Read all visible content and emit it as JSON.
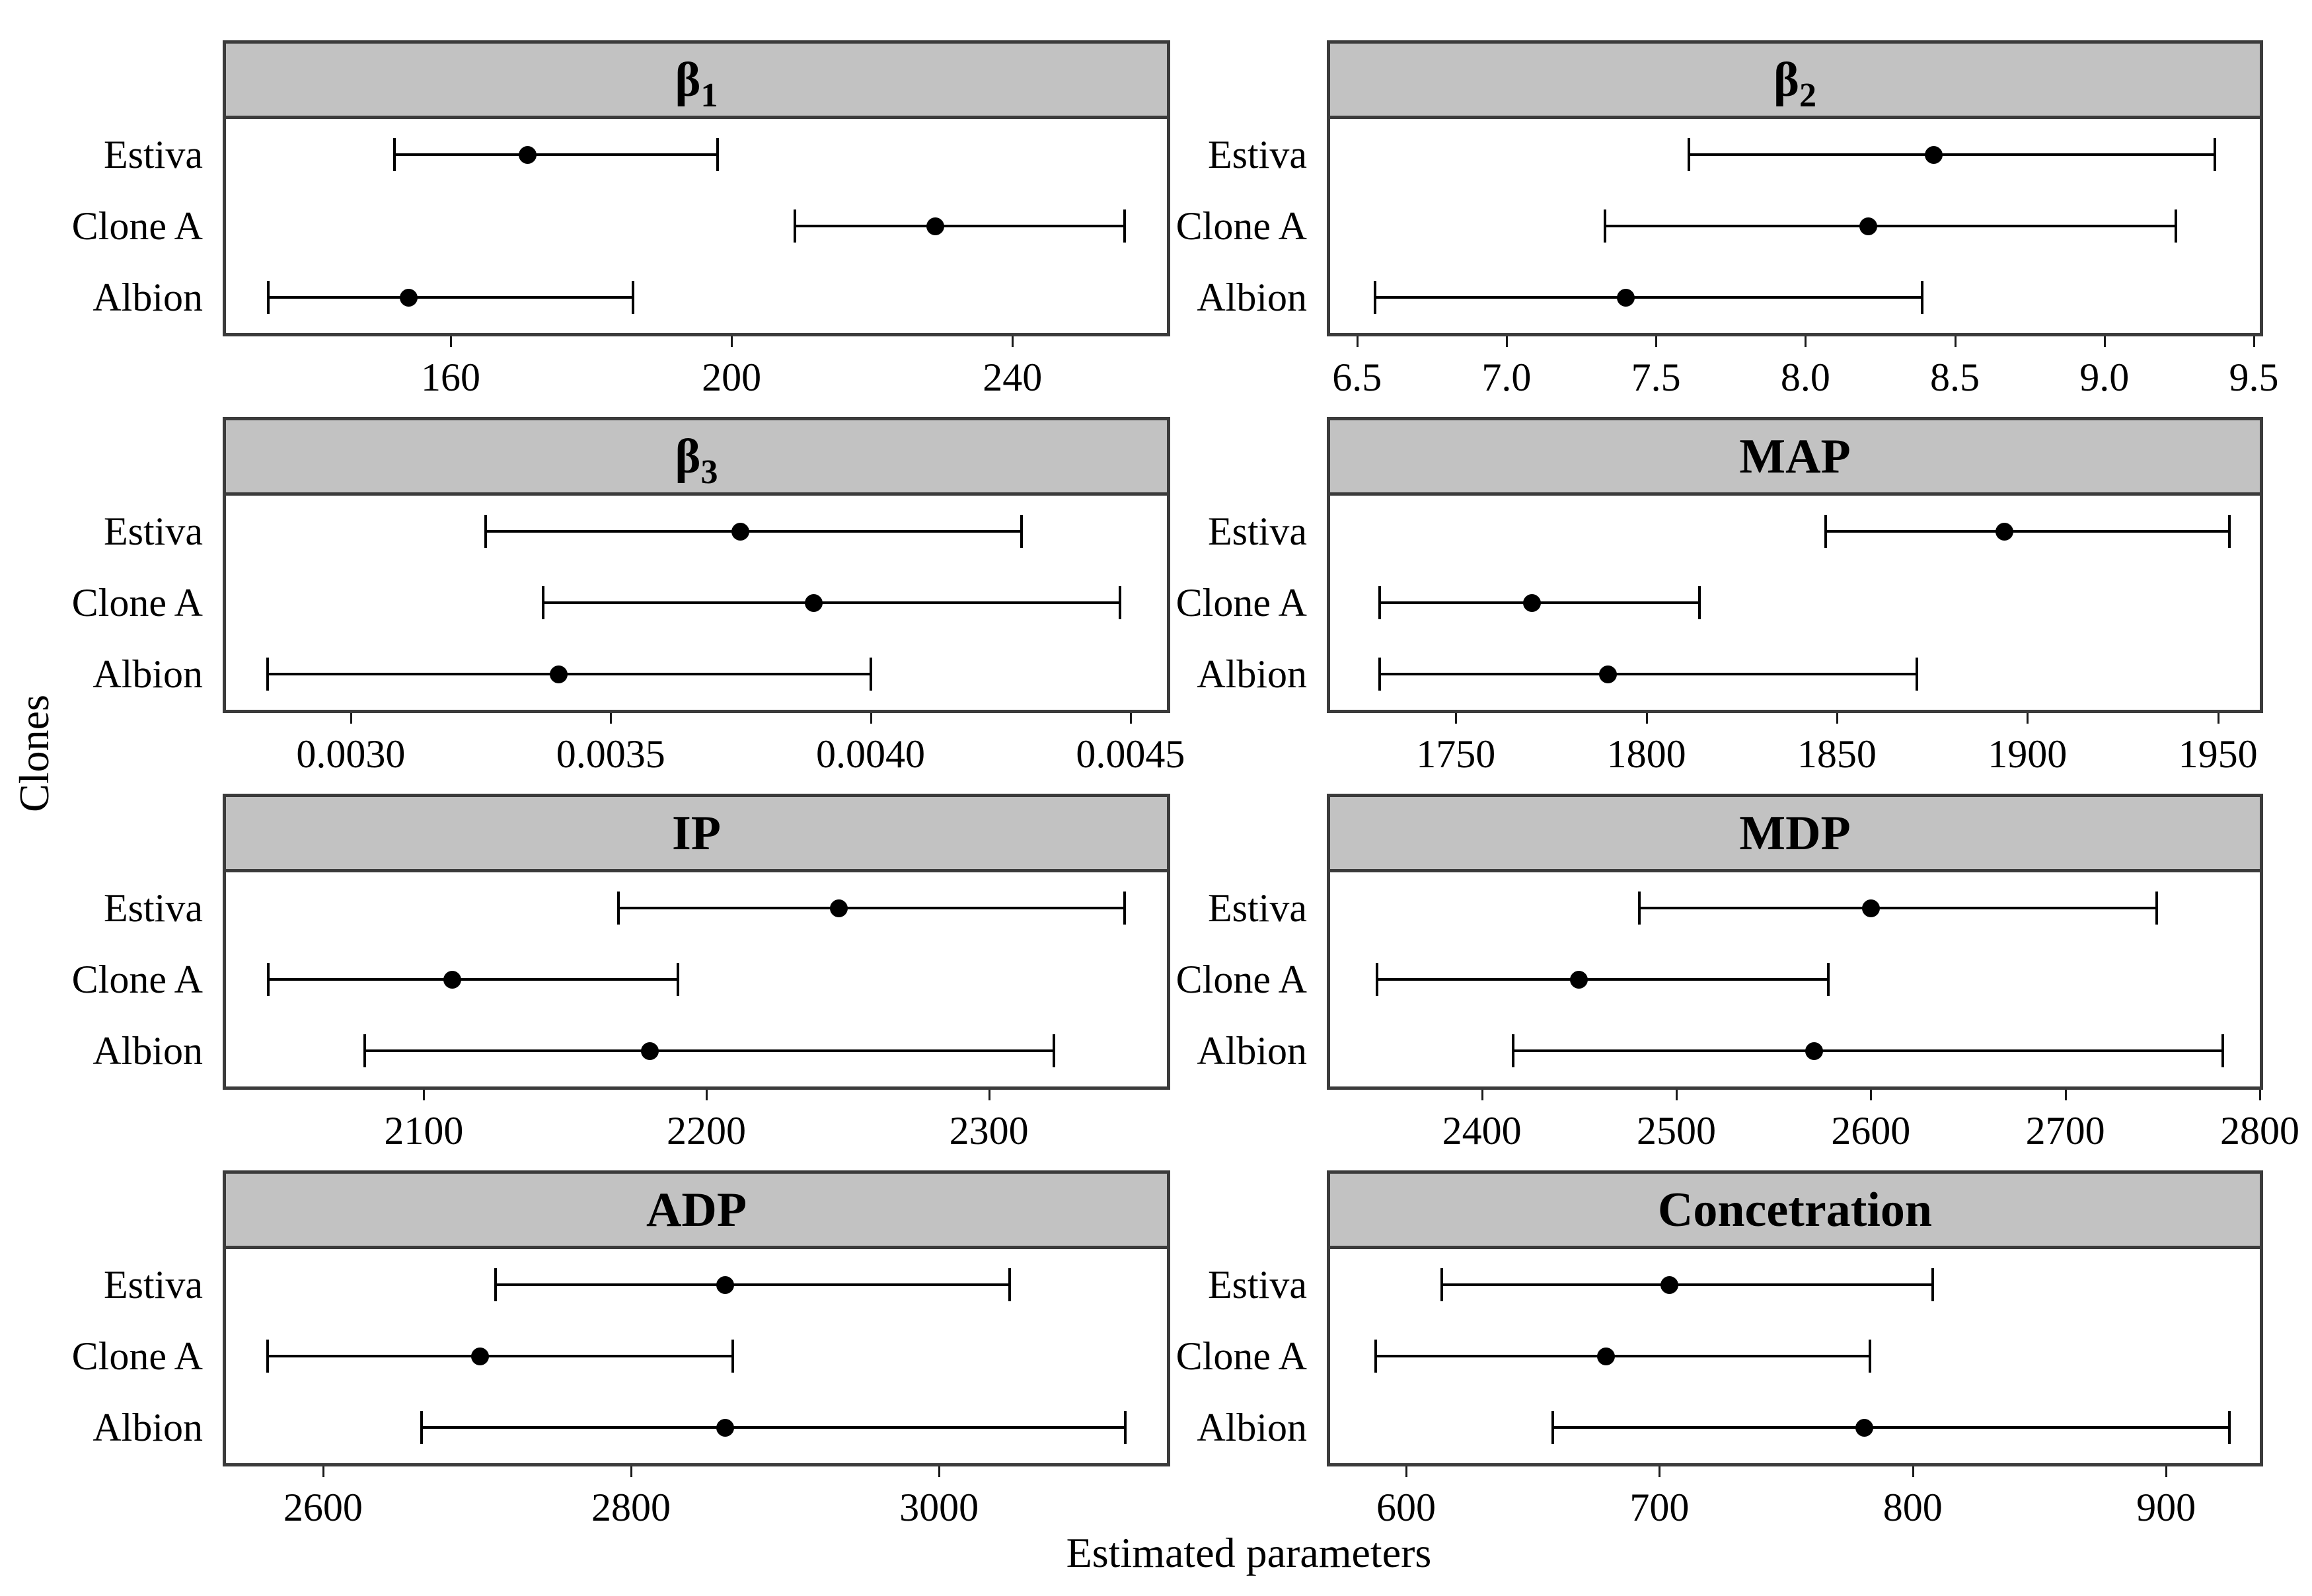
{
  "figure": {
    "ylabel": "Clones",
    "xlabel": "Estimated parameters",
    "clones": [
      "Estiva",
      "Clone A",
      "Albion"
    ],
    "colors": {
      "header_fill": "#c2c2c2",
      "panel_border": "#3b3b3b",
      "marker": "#000000",
      "text": "#000000",
      "background": "#ffffff"
    }
  },
  "chart_data": [
    {
      "type": "scatter",
      "name": "beta1",
      "title": {
        "base": "β",
        "sub": "1",
        "display": "β1"
      },
      "axis": {
        "min": 128,
        "max": 262,
        "tick_values": [
          160,
          200,
          240
        ],
        "tick_labels": [
          "160",
          "200",
          "240"
        ]
      },
      "series": [
        {
          "clone": "Estiva",
          "value": 171,
          "low": 152,
          "high": 198
        },
        {
          "clone": "Clone A",
          "value": 229,
          "low": 209,
          "high": 256
        },
        {
          "clone": "Albion",
          "value": 154,
          "low": 134,
          "high": 186
        }
      ]
    },
    {
      "type": "scatter",
      "name": "beta2",
      "title": {
        "base": "β",
        "sub": "2",
        "display": "β2"
      },
      "axis": {
        "min": 6.41,
        "max": 9.52,
        "tick_values": [
          6.5,
          7.0,
          7.5,
          8.0,
          8.5,
          9.0,
          9.5
        ],
        "tick_labels": [
          "6.5",
          "7.0",
          "7.5",
          "8.0",
          "8.5",
          "9.0",
          "9.5"
        ]
      },
      "series": [
        {
          "clone": "Estiva",
          "value": 8.43,
          "low": 7.61,
          "high": 9.37
        },
        {
          "clone": "Clone A",
          "value": 8.21,
          "low": 7.33,
          "high": 9.24
        },
        {
          "clone": "Albion",
          "value": 7.4,
          "low": 6.56,
          "high": 8.39
        }
      ]
    },
    {
      "type": "scatter",
      "name": "beta3",
      "title": {
        "base": "β",
        "sub": "3",
        "display": "β3"
      },
      "axis": {
        "min": 0.00276,
        "max": 0.00457,
        "tick_values": [
          0.003,
          0.0035,
          0.004,
          0.0045
        ],
        "tick_labels": [
          "0.0030",
          "0.0035",
          "0.0040",
          "0.0045"
        ]
      },
      "series": [
        {
          "clone": "Estiva",
          "value": 0.00375,
          "low": 0.00326,
          "high": 0.00429
        },
        {
          "clone": "Clone A",
          "value": 0.00389,
          "low": 0.00337,
          "high": 0.00448
        },
        {
          "clone": "Albion",
          "value": 0.0034,
          "low": 0.00284,
          "high": 0.004
        }
      ]
    },
    {
      "type": "scatter",
      "name": "map",
      "title": {
        "base": "MAP",
        "sub": "",
        "display": "MAP"
      },
      "axis": {
        "min": 1717,
        "max": 1961,
        "tick_values": [
          1750,
          1800,
          1850,
          1900,
          1950
        ],
        "tick_labels": [
          "1750",
          "1800",
          "1850",
          "1900",
          "1950"
        ]
      },
      "series": [
        {
          "clone": "Estiva",
          "value": 1894,
          "low": 1847,
          "high": 1953
        },
        {
          "clone": "Clone A",
          "value": 1770,
          "low": 1730,
          "high": 1814
        },
        {
          "clone": "Albion",
          "value": 1790,
          "low": 1730,
          "high": 1871
        }
      ]
    },
    {
      "type": "scatter",
      "name": "ip",
      "title": {
        "base": "IP",
        "sub": "",
        "display": "IP"
      },
      "axis": {
        "min": 2030,
        "max": 2363,
        "tick_values": [
          2100,
          2200,
          2300
        ],
        "tick_labels": [
          "2100",
          "2200",
          "2300"
        ]
      },
      "series": [
        {
          "clone": "Estiva",
          "value": 2247,
          "low": 2169,
          "high": 2348
        },
        {
          "clone": "Clone A",
          "value": 2110,
          "low": 2045,
          "high": 2190
        },
        {
          "clone": "Albion",
          "value": 2180,
          "low": 2079,
          "high": 2323
        }
      ]
    },
    {
      "type": "scatter",
      "name": "mdp",
      "title": {
        "base": "MDP",
        "sub": "",
        "display": "MDP"
      },
      "axis": {
        "min": 2322,
        "max": 2800,
        "tick_values": [
          2400,
          2500,
          2600,
          2700,
          2800
        ],
        "tick_labels": [
          "2400",
          "2500",
          "2600",
          "2700",
          "2800"
        ]
      },
      "series": [
        {
          "clone": "Estiva",
          "value": 2600,
          "low": 2481,
          "high": 2747
        },
        {
          "clone": "Clone A",
          "value": 2450,
          "low": 2346,
          "high": 2578
        },
        {
          "clone": "Albion",
          "value": 2571,
          "low": 2416,
          "high": 2781
        }
      ]
    },
    {
      "type": "scatter",
      "name": "adp",
      "title": {
        "base": "ADP",
        "sub": "",
        "display": "ADP"
      },
      "axis": {
        "min": 2537,
        "max": 3148,
        "tick_values": [
          2600,
          2800,
          3000
        ],
        "tick_labels": [
          "2600",
          "2800",
          "3000"
        ]
      },
      "series": [
        {
          "clone": "Estiva",
          "value": 2861,
          "low": 2712,
          "high": 3046
        },
        {
          "clone": "Clone A",
          "value": 2702,
          "low": 2564,
          "high": 2866
        },
        {
          "clone": "Albion",
          "value": 2861,
          "low": 2664,
          "high": 3121
        }
      ]
    },
    {
      "type": "scatter",
      "name": "concetration",
      "title": {
        "base": "Concetration",
        "sub": "",
        "display": "Concetration"
      },
      "axis": {
        "min": 570,
        "max": 937,
        "tick_values": [
          600,
          700,
          800,
          900
        ],
        "tick_labels": [
          "600",
          "700",
          "800",
          "900"
        ]
      },
      "series": [
        {
          "clone": "Estiva",
          "value": 704,
          "low": 614,
          "high": 808
        },
        {
          "clone": "Clone A",
          "value": 679,
          "low": 588,
          "high": 783
        },
        {
          "clone": "Albion",
          "value": 781,
          "low": 658,
          "high": 925
        }
      ]
    }
  ]
}
